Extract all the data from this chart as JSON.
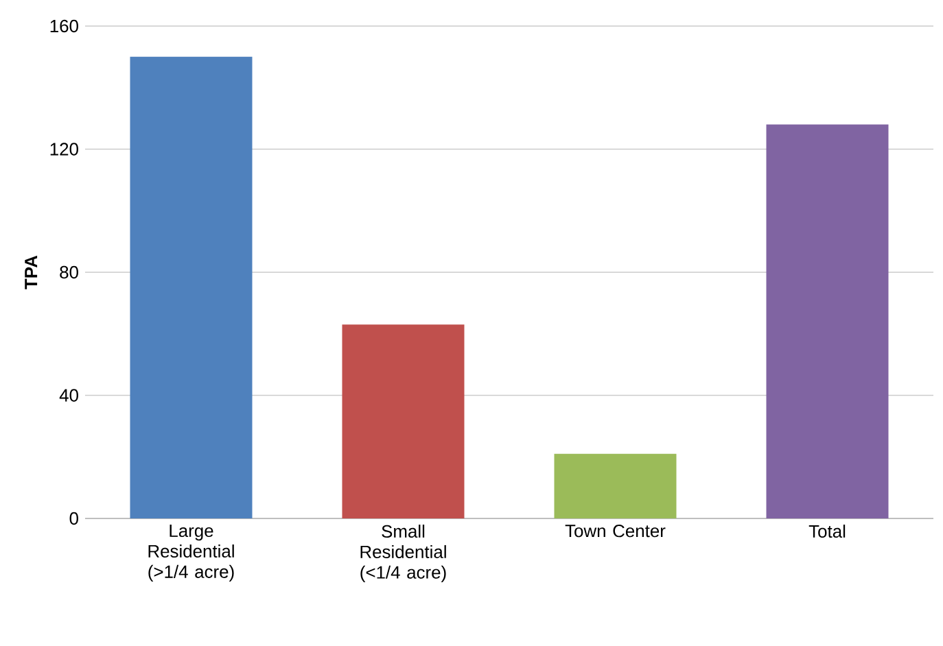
{
  "chart_data": {
    "type": "bar",
    "ylabel": "TPA",
    "categories": [
      "Large Residential (>1/4 acre)",
      "Small Residential (<1/4 acre)",
      "Town Center",
      "Total"
    ],
    "values": [
      150,
      63,
      21,
      128
    ],
    "colors": [
      "#4f81bd",
      "#c0504d",
      "#9bbb59",
      "#8064a2"
    ],
    "ylim": [
      0,
      160
    ],
    "yticks": [
      0,
      40,
      80,
      120,
      160
    ],
    "grid": "y"
  }
}
